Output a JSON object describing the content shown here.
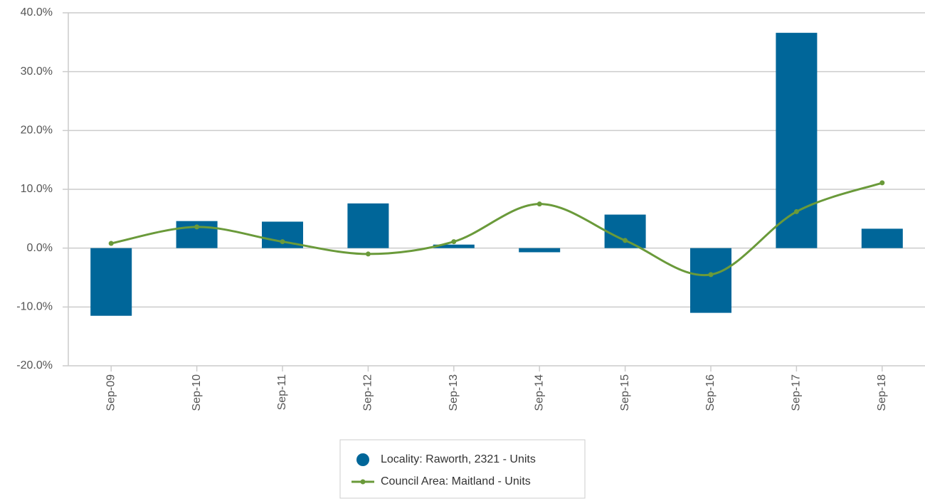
{
  "chart_data": {
    "type": "bar",
    "categories": [
      "Sep-09",
      "Sep-10",
      "Sep-11",
      "Sep-12",
      "Sep-13",
      "Sep-14",
      "Sep-15",
      "Sep-16",
      "Sep-17",
      "Sep-18"
    ],
    "series": [
      {
        "name": "Locality: Raworth, 2321 - Units",
        "color": "#006699",
        "type": "bar",
        "values": [
          -11.5,
          4.6,
          4.5,
          7.6,
          0.6,
          -0.7,
          5.7,
          -11.0,
          36.6,
          3.3
        ]
      },
      {
        "name": "Council Area: Maitland - Units",
        "color": "#6a9a3a",
        "type": "line",
        "values": [
          0.8,
          3.6,
          1.1,
          -1.0,
          1.1,
          7.5,
          1.3,
          -4.5,
          6.2,
          11.1
        ]
      }
    ],
    "ylim": [
      -20,
      40
    ],
    "yticks": [
      {
        "value": -20,
        "label": "-20.0%"
      },
      {
        "value": -10,
        "label": "-10.0%"
      },
      {
        "value": 0,
        "label": "0.0%"
      },
      {
        "value": 10,
        "label": "10.0%"
      },
      {
        "value": 20,
        "label": "20.0%"
      },
      {
        "value": 30,
        "label": "30.0%"
      },
      {
        "value": 40,
        "label": "40.0%"
      }
    ],
    "grid": true,
    "legend": "bottom"
  }
}
